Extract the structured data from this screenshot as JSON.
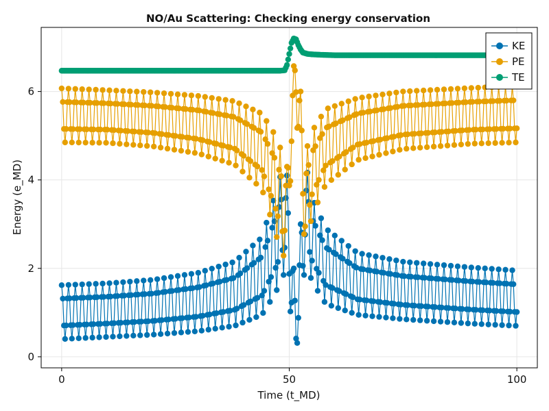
{
  "chart_data": {
    "type": "scatter",
    "title": "NO/Au Scattering: Checking energy conservation",
    "xlabel": "Time (t_MD)",
    "ylabel": "Energy (e_MD)",
    "xlim": [
      -4.5,
      104.5
    ],
    "ylim": [
      -0.25,
      7.45
    ],
    "xticks": [
      0,
      50,
      100
    ],
    "yticks": [
      0,
      2,
      4,
      6
    ],
    "grid": true,
    "legend_position": "top-right",
    "series": [
      {
        "name": "KE",
        "color": "#0072B2",
        "oscillation": {
          "period": 1.5,
          "envelope": [
            [
              0,
              0.4,
              1.62
            ],
            [
              10,
              0.45,
              1.66
            ],
            [
              20,
              0.5,
              1.74
            ],
            [
              30,
              0.58,
              1.9
            ],
            [
              38,
              0.7,
              2.15
            ],
            [
              44,
              0.95,
              2.7
            ],
            [
              47,
              1.45,
              3.7
            ],
            [
              48.5,
              1.8,
              4.25
            ],
            [
              49.5,
              2.0,
              4.1
            ],
            [
              50.5,
              0.7,
              2.8
            ],
            [
              51.5,
              0.15,
              1.2
            ],
            [
              52.5,
              0.8,
              3.0
            ],
            [
              53.5,
              2.2,
              4.45
            ],
            [
              55,
              1.7,
              3.6
            ],
            [
              58,
              1.2,
              2.9
            ],
            [
              65,
              0.95,
              2.35
            ],
            [
              75,
              0.85,
              2.15
            ],
            [
              90,
              0.75,
              2.02
            ],
            [
              100,
              0.7,
              1.95
            ]
          ]
        }
      },
      {
        "name": "PE",
        "color": "#E69F00",
        "oscillation": {
          "period": 1.5,
          "envelope": [
            [
              0,
              4.85,
              6.07
            ],
            [
              10,
              4.84,
              6.03
            ],
            [
              20,
              4.76,
              5.98
            ],
            [
              30,
              4.6,
              5.9
            ],
            [
              38,
              4.35,
              5.78
            ],
            [
              44,
              3.8,
              5.5
            ],
            [
              47,
              2.8,
              5.0
            ],
            [
              48.5,
              2.25,
              4.6
            ],
            [
              49.5,
              2.4,
              4.3
            ],
            [
              50.5,
              4.5,
              6.0
            ],
            [
              51.5,
              5.6,
              7.15
            ],
            [
              52.5,
              3.9,
              6.0
            ],
            [
              53.5,
              2.4,
              4.6
            ],
            [
              55,
              3.2,
              5.1
            ],
            [
              58,
              3.9,
              5.6
            ],
            [
              65,
              4.45,
              5.85
            ],
            [
              75,
              4.7,
              6.0
            ],
            [
              90,
              4.82,
              6.08
            ],
            [
              100,
              4.85,
              6.12
            ]
          ]
        }
      },
      {
        "name": "TE",
        "color": "#009E73",
        "x": [
          0,
          10,
          20,
          30,
          40,
          45,
          47,
          48,
          49,
          49.5,
          50,
          50.5,
          51,
          51.5,
          52,
          52.5,
          53,
          54,
          55,
          57,
          60,
          70,
          80,
          90,
          100
        ],
        "y": [
          6.47,
          6.47,
          6.47,
          6.47,
          6.47,
          6.47,
          6.47,
          6.47,
          6.48,
          6.6,
          6.85,
          7.1,
          7.2,
          7.18,
          7.05,
          6.95,
          6.88,
          6.85,
          6.84,
          6.83,
          6.82,
          6.82,
          6.82,
          6.82,
          6.82
        ]
      }
    ]
  }
}
